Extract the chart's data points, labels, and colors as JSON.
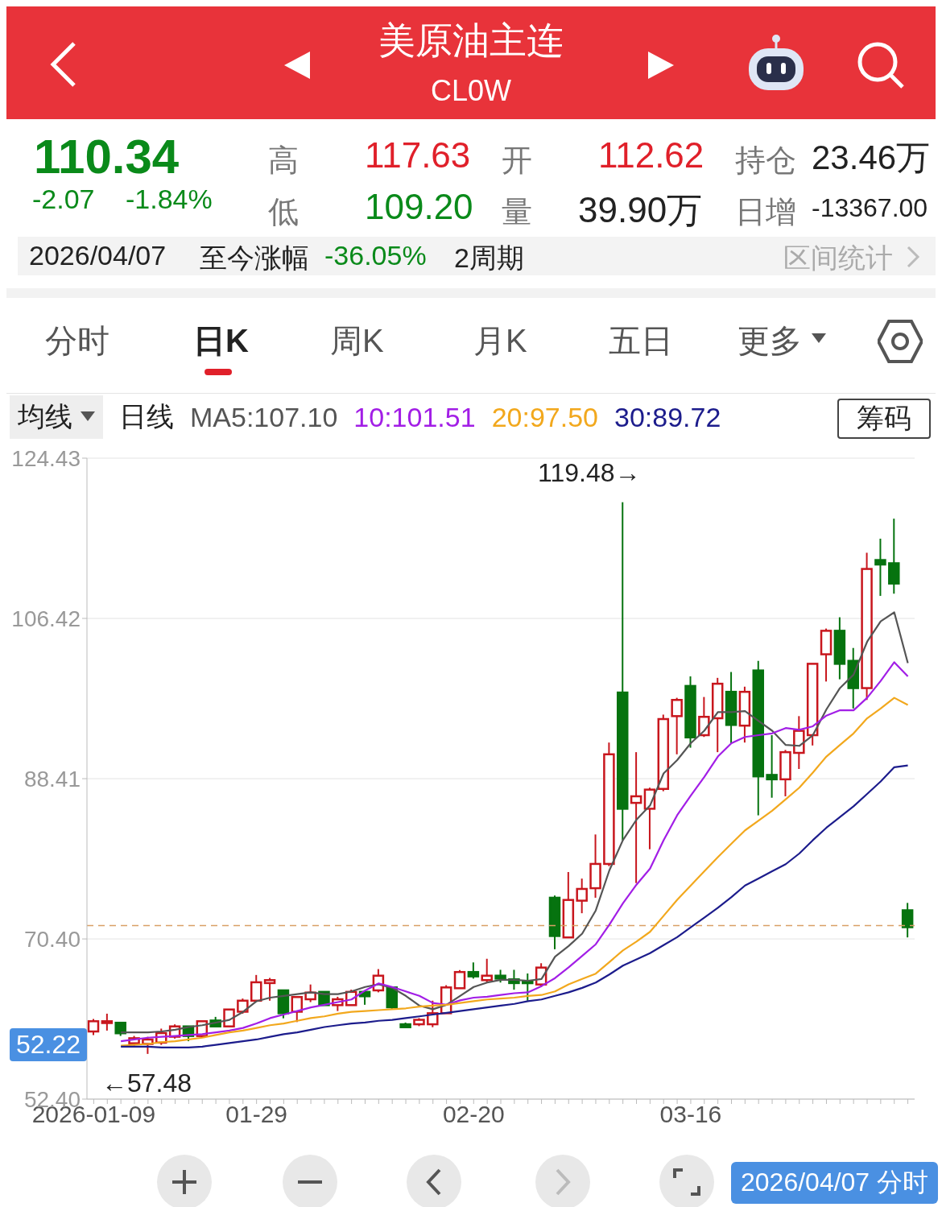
{
  "chart_data": {
    "type": "candlestick",
    "title": "美原油主连",
    "subtitle": "CL0W",
    "categories": [
      "2026-01-09",
      null,
      null,
      null,
      null,
      null,
      null,
      null,
      null,
      null,
      null,
      null,
      "01-29",
      null,
      null,
      null,
      null,
      null,
      null,
      null,
      null,
      null,
      null,
      null,
      null,
      null,
      null,
      null,
      "02-20",
      null,
      null,
      null,
      null,
      null,
      null,
      null,
      null,
      null,
      null,
      null,
      null,
      null,
      null,
      null,
      "03-16",
      null,
      null,
      null,
      null,
      null,
      null,
      null,
      null,
      null,
      null,
      null,
      null,
      null,
      null,
      null,
      null
    ],
    "ohlc": [
      [
        60.0,
        61.4,
        59.6,
        61.15
      ],
      [
        60.95,
        62.0,
        60.1,
        61.15
      ],
      [
        60.98,
        61.0,
        59.5,
        59.8
      ],
      [
        58.67,
        59.5,
        58.4,
        59.24
      ],
      [
        58.6,
        59.4,
        57.48,
        59.1
      ],
      [
        58.75,
        60.32,
        58.5,
        59.82
      ],
      [
        59.41,
        60.8,
        59.2,
        60.57
      ],
      [
        60.57,
        60.7,
        58.91,
        59.49
      ],
      [
        59.49,
        61.3,
        59.3,
        61.15
      ],
      [
        61.23,
        61.64,
        60.4,
        60.57
      ],
      [
        60.57,
        62.6,
        60.4,
        62.47
      ],
      [
        62.22,
        63.7,
        62.0,
        63.46
      ],
      [
        63.46,
        66.35,
        63.3,
        65.53
      ],
      [
        65.44,
        66.02,
        63.46,
        65.77
      ],
      [
        64.62,
        64.7,
        61.48,
        62.05
      ],
      [
        62.22,
        64.0,
        61.06,
        63.87
      ],
      [
        63.62,
        65.28,
        63.3,
        64.37
      ],
      [
        64.45,
        64.6,
        62.8,
        62.96
      ],
      [
        62.96,
        63.9,
        62.3,
        63.62
      ],
      [
        62.96,
        64.7,
        62.8,
        64.45
      ],
      [
        64.45,
        64.6,
        63.0,
        63.96
      ],
      [
        64.62,
        67.01,
        64.4,
        66.27
      ],
      [
        64.95,
        65.1,
        62.47,
        62.72
      ],
      [
        60.81,
        61.0,
        60.3,
        60.48
      ],
      [
        60.81,
        61.5,
        60.6,
        61.31
      ],
      [
        60.81,
        63.46,
        60.48,
        62.05
      ],
      [
        62.05,
        65.2,
        61.9,
        64.95
      ],
      [
        64.86,
        66.9,
        64.7,
        66.68
      ],
      [
        66.68,
        67.76,
        65.94,
        66.19
      ],
      [
        65.77,
        68.17,
        65.53,
        66.27
      ],
      [
        66.27,
        66.93,
        65.5,
        65.94
      ],
      [
        65.86,
        66.93,
        64.7,
        65.44
      ],
      [
        65.61,
        66.52,
        63.46,
        65.44
      ],
      [
        65.28,
        67.67,
        65.0,
        67.18
      ],
      [
        75.03,
        75.28,
        69.24,
        70.73
      ],
      [
        70.57,
        77.92,
        70.4,
        74.78
      ],
      [
        74.7,
        77.18,
        73.29,
        76.02
      ],
      [
        76.1,
        82.14,
        75.03,
        78.83
      ],
      [
        78.83,
        92.47,
        78.58,
        91.15
      ],
      [
        98.09,
        119.48,
        81.48,
        85.03
      ],
      [
        85.69,
        91.39,
        76.68,
        86.43
      ],
      [
        85.03,
        87.4,
        80.48,
        87.18
      ],
      [
        87.26,
        95.61,
        87.0,
        95.11
      ],
      [
        95.44,
        97.5,
        91.15,
        97.26
      ],
      [
        98.83,
        99.91,
        91.89,
        93.05
      ],
      [
        93.3,
        97.59,
        93.1,
        95.36
      ],
      [
        95.2,
        99.74,
        91.39,
        99.08
      ],
      [
        98.17,
        100.4,
        92.39,
        94.45
      ],
      [
        94.37,
        98.75,
        92.47,
        98.17
      ],
      [
        100.57,
        101.65,
        84.29,
        88.67
      ],
      [
        88.83,
        93.3,
        86.27,
        88.34
      ],
      [
        88.34,
        91.64,
        86.43,
        91.39
      ],
      [
        91.31,
        95.44,
        89.5,
        93.79
      ],
      [
        93.3,
        101.5,
        92.14,
        101.32
      ],
      [
        102.39,
        105.28,
        99.33,
        105.03
      ],
      [
        105.03,
        106.55,
        99.58,
        101.32
      ],
      [
        101.65,
        103.1,
        96.3,
        98.59
      ],
      [
        98.59,
        113.8,
        97.26,
        111.98
      ],
      [
        112.98,
        115.38,
        108.95,
        112.48
      ],
      [
        112.62,
        117.63,
        109.2,
        110.34
      ],
      [
        73.62,
        74.45,
        70.57,
        71.72
      ]
    ],
    "colors": [
      "#c8161d",
      "#c8161d",
      "#06730f",
      "#c8161d",
      "#c8161d",
      "#c8161d",
      "#c8161d",
      "#06730f",
      "#c8161d",
      "#06730f",
      "#c8161d",
      "#c8161d",
      "#c8161d",
      "#c8161d",
      "#06730f",
      "#c8161d",
      "#c8161d",
      "#06730f",
      "#c8161d",
      "#c8161d",
      "#06730f",
      "#c8161d",
      "#06730f",
      "#06730f",
      "#c8161d",
      "#c8161d",
      "#c8161d",
      "#c8161d",
      "#06730f",
      "#c8161d",
      "#06730f",
      "#06730f",
      "#06730f",
      "#c8161d",
      "#06730f",
      "#c8161d",
      "#c8161d",
      "#c8161d",
      "#c8161d",
      "#06730f",
      "#c8161d",
      "#c8161d",
      "#c8161d",
      "#c8161d",
      "#06730f",
      "#c8161d",
      "#c8161d",
      "#06730f",
      "#c8161d",
      "#06730f",
      "#06730f",
      "#c8161d",
      "#c8161d",
      "#c8161d",
      "#c8161d",
      "#06730f",
      "#06730f",
      "#c8161d",
      "#06730f",
      "#06730f",
      "#06730f"
    ],
    "series": [
      {
        "name": "MA5:107.10",
        "type": "line",
        "color": "#555555",
        "values": [
          null,
          null,
          59.9,
          59.9,
          59.9,
          60.0,
          60.2,
          60.5,
          60.7,
          61.0,
          61.3,
          62.2,
          63.4,
          63.8,
          64.0,
          64.2,
          64.4,
          64.2,
          64.2,
          64.5,
          65.0,
          65.3,
          64.9,
          64.0,
          62.9,
          62.5,
          63.0,
          64.0,
          65.0,
          65.5,
          65.8,
          65.8,
          65.7,
          65.9,
          68.4,
          69.6,
          71.0,
          73.6,
          78.1,
          81.5,
          83.8,
          85.4,
          89.0,
          90.5,
          92.4,
          93.8,
          95.9,
          95.9,
          96.0,
          94.9,
          93.8,
          92.2,
          92.1,
          93.3,
          96.2,
          98.6,
          100.1,
          103.8,
          106.1,
          107.1,
          101.4
        ]
      },
      {
        "name": "10:101.51",
        "type": "line",
        "color": "#a21ee6",
        "values": [
          null,
          null,
          58.9,
          59.1,
          59.3,
          59.4,
          59.5,
          59.6,
          59.7,
          59.9,
          60.1,
          60.4,
          60.9,
          61.5,
          61.9,
          62.3,
          62.7,
          63.0,
          63.3,
          63.6,
          64.6,
          65.4,
          65.0,
          64.5,
          64.0,
          63.2,
          63.0,
          63.5,
          63.8,
          63.9,
          64.1,
          64.3,
          64.4,
          65.1,
          66.0,
          67.2,
          68.5,
          69.8,
          72.0,
          74.4,
          76.5,
          78.3,
          81.5,
          84.3,
          86.5,
          88.6,
          90.9,
          92.4,
          93.1,
          93.3,
          93.5,
          94.1,
          93.9,
          94.3,
          95.5,
          96.1,
          96.1,
          97.5,
          99.4,
          101.5,
          99.9
        ]
      },
      {
        "name": "20:97.50",
        "type": "line",
        "color": "#f2a81d",
        "values": [
          null,
          null,
          58.4,
          58.5,
          58.6,
          58.8,
          58.9,
          59.1,
          59.3,
          59.6,
          59.9,
          60.1,
          60.4,
          60.7,
          60.9,
          61.2,
          61.5,
          61.7,
          62.0,
          62.2,
          62.3,
          62.4,
          62.5,
          62.6,
          62.8,
          62.9,
          63.0,
          63.2,
          63.4,
          63.6,
          63.7,
          63.8,
          64.0,
          64.1,
          64.5,
          65.3,
          65.9,
          66.5,
          67.8,
          69.1,
          70.1,
          71.2,
          73.0,
          74.8,
          76.4,
          78.0,
          79.6,
          81.1,
          82.6,
          83.7,
          84.8,
          86.1,
          87.4,
          89.1,
          90.9,
          92.2,
          93.5,
          95.2,
          96.3,
          97.5,
          96.7
        ]
      },
      {
        "name": "30:89.72",
        "type": "line",
        "color": "#1c1c8c",
        "values": [
          null,
          null,
          58.3,
          58.3,
          58.3,
          58.2,
          58.2,
          58.2,
          58.3,
          58.5,
          58.7,
          58.9,
          59.1,
          59.4,
          59.7,
          59.9,
          60.2,
          60.5,
          60.7,
          60.9,
          61.0,
          61.2,
          61.3,
          61.5,
          61.7,
          61.9,
          62.1,
          62.3,
          62.5,
          62.7,
          62.9,
          63.1,
          63.4,
          63.6,
          64.0,
          64.4,
          64.9,
          65.5,
          66.4,
          67.4,
          68.1,
          68.8,
          69.7,
          70.6,
          71.7,
          72.8,
          73.9,
          75.1,
          76.4,
          77.2,
          78.0,
          78.8,
          80.0,
          81.5,
          82.9,
          84.1,
          85.3,
          86.7,
          88.1,
          89.7,
          89.9
        ]
      }
    ],
    "ylim": [
      52.4,
      124.43
    ],
    "yticks": [
      {
        "value": 52.4,
        "label": "52.40"
      },
      {
        "value": 70.4,
        "label": "70.40"
      },
      88.41,
      106.42,
      124.43
    ],
    "grid": "y",
    "legend": "top left",
    "line_style": "solid",
    "ref_lines": [
      {
        "axis": "y",
        "value": 71.9,
        "color": "#d9a066",
        "line_style": "dashed"
      }
    ],
    "annotations": [
      "110.34",
      "-2.07",
      "-1.84%",
      "高",
      "117.63",
      "开",
      "112.62",
      "持仓",
      "23.46万",
      "低",
      "109.20",
      "量",
      "39.90万",
      "日增",
      "-13367.00",
      "2026/04/07",
      "至今涨幅",
      "-36.05%",
      "2周期",
      "区间统计",
      "分时",
      "日K",
      "周K",
      "月K",
      "五日",
      "更多",
      "均线",
      "日线",
      "筹码",
      "2026/04/07 分时",
      "52.22",
      "119.48→",
      "←57.48"
    ]
  }
}
